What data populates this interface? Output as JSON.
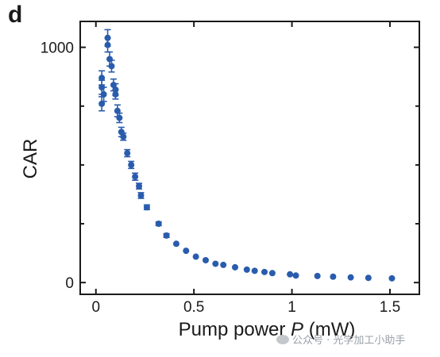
{
  "panel_label": "d",
  "watermark": {
    "text": "公众号 · 光学加工小助手"
  },
  "colors": {
    "points": "#2a5cad",
    "axis": "#1a1a1a",
    "background": "#ffffff"
  },
  "chart_data": {
    "type": "scatter",
    "title": "",
    "xlabel": "Pump power ",
    "xlabel_var": "P",
    "xlabel_unit": " (mW)",
    "ylabel": "CAR",
    "xlim": [
      -0.08,
      1.65
    ],
    "ylim": [
      -50,
      1110
    ],
    "xticks": [
      0,
      0.5,
      1,
      1.5
    ],
    "xtick_labels": [
      "0",
      "0.5",
      "1",
      "1.5"
    ],
    "yticks": [
      0,
      1000
    ],
    "ytick_labels": [
      "0",
      "1000"
    ],
    "y_minor_ticks": [
      250,
      500,
      750
    ],
    "grid": false,
    "series": [
      {
        "x": [
          0.03,
          0.03,
          0.03,
          0.04,
          0.06,
          0.06,
          0.07,
          0.08,
          0.09,
          0.1,
          0.1,
          0.11,
          0.12,
          0.13,
          0.14,
          0.16,
          0.18,
          0.2,
          0.22,
          0.23,
          0.26,
          0.32,
          0.36,
          0.41,
          0.46,
          0.51,
          0.56,
          0.61,
          0.65,
          0.71,
          0.77,
          0.81,
          0.86,
          0.9,
          0.99,
          1.02,
          1.13,
          1.21,
          1.3,
          1.39,
          1.51
        ],
        "y": [
          870,
          830,
          760,
          800,
          1040,
          1010,
          950,
          920,
          840,
          820,
          800,
          730,
          700,
          640,
          620,
          550,
          500,
          450,
          410,
          370,
          320,
          250,
          200,
          165,
          135,
          110,
          95,
          80,
          75,
          65,
          55,
          50,
          45,
          40,
          35,
          30,
          28,
          25,
          22,
          20,
          18
        ],
        "err": [
          30,
          30,
          30,
          30,
          35,
          30,
          30,
          25,
          25,
          25,
          20,
          25,
          20,
          20,
          15,
          15,
          15,
          15,
          12,
          12,
          10,
          8,
          8,
          6,
          6,
          5,
          5,
          5,
          4,
          4,
          4,
          4,
          3,
          3,
          3,
          3,
          3,
          3,
          3,
          3,
          3
        ]
      }
    ]
  }
}
